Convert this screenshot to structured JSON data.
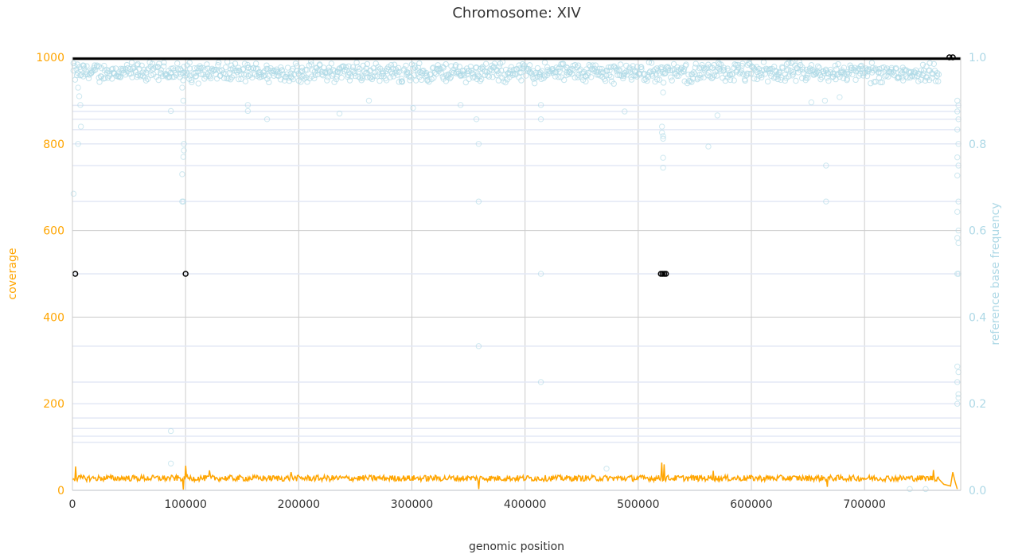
{
  "chart_data": {
    "type": "scatter",
    "title": "Chromosome: XIV",
    "xlabel": "genomic position",
    "ylabel_left": "coverage",
    "ylabel_right": "reference base frequency",
    "xlim": [
      0,
      785000
    ],
    "ylim_left": [
      0,
      1000
    ],
    "ylim_right": [
      0.0,
      1.0
    ],
    "x_ticks": [
      "0",
      "100000",
      "200000",
      "300000",
      "400000",
      "500000",
      "600000",
      "700000"
    ],
    "y_left_ticks": [
      "0",
      "200",
      "400",
      "600",
      "800",
      "1000"
    ],
    "y_right_ticks": [
      "0.0",
      "0.2",
      "0.4",
      "0.6",
      "0.8",
      "1.0"
    ],
    "grid": true,
    "colors": {
      "coverage": "#FFA500",
      "frequency": "#ADD8E6",
      "marker": "#000000",
      "grid": "#cccccc",
      "axis_left": "#FFA500",
      "axis_right": "#ADD8E6"
    },
    "coverage_series": {
      "name": "",
      "baseline": 28,
      "spikes": [
        {
          "x": 2500,
          "y": 55
        },
        {
          "x": 100000,
          "y": 57
        },
        {
          "x": 98000,
          "y": 2
        },
        {
          "x": 121000,
          "y": 46
        },
        {
          "x": 193000,
          "y": 42
        },
        {
          "x": 359000,
          "y": 3
        },
        {
          "x": 521000,
          "y": 64
        },
        {
          "x": 523000,
          "y": 60
        },
        {
          "x": 566000,
          "y": 45
        },
        {
          "x": 667000,
          "y": 8
        },
        {
          "x": 761000,
          "y": 47
        },
        {
          "x": 778000,
          "y": 42
        },
        {
          "x": 782000,
          "y": 3
        }
      ]
    },
    "frequency_series": {
      "name": "",
      "band_center": 0.965,
      "band_spread": 0.02,
      "outliers": [
        {
          "x": 5000,
          "y": 0.93
        },
        {
          "x": 6000,
          "y": 0.91
        },
        {
          "x": 7000,
          "y": 0.89
        },
        {
          "x": 7500,
          "y": 0.84
        },
        {
          "x": 5000,
          "y": 0.8
        },
        {
          "x": 1000,
          "y": 0.685
        },
        {
          "x": 87000,
          "y": 0.876
        },
        {
          "x": 87000,
          "y": 0.137
        },
        {
          "x": 87000,
          "y": 0.062
        },
        {
          "x": 97000,
          "y": 0.93
        },
        {
          "x": 98000,
          "y": 0.9
        },
        {
          "x": 98500,
          "y": 0.8
        },
        {
          "x": 98500,
          "y": 0.785
        },
        {
          "x": 98000,
          "y": 0.77
        },
        {
          "x": 97000,
          "y": 0.73
        },
        {
          "x": 97000,
          "y": 0.667
        },
        {
          "x": 98000,
          "y": 0.667
        },
        {
          "x": 155000,
          "y": 0.89
        },
        {
          "x": 155000,
          "y": 0.876
        },
        {
          "x": 172000,
          "y": 0.857
        },
        {
          "x": 236000,
          "y": 0.87
        },
        {
          "x": 262000,
          "y": 0.9
        },
        {
          "x": 301000,
          "y": 0.883
        },
        {
          "x": 343000,
          "y": 0.89
        },
        {
          "x": 357000,
          "y": 0.857
        },
        {
          "x": 359000,
          "y": 0.8
        },
        {
          "x": 359000,
          "y": 0.667
        },
        {
          "x": 359000,
          "y": 0.333
        },
        {
          "x": 414000,
          "y": 0.89
        },
        {
          "x": 414000,
          "y": 0.857
        },
        {
          "x": 414000,
          "y": 0.5
        },
        {
          "x": 414000,
          "y": 0.25
        },
        {
          "x": 472000,
          "y": 0.05
        },
        {
          "x": 488000,
          "y": 0.875
        },
        {
          "x": 521000,
          "y": 0.84
        },
        {
          "x": 521000,
          "y": 0.826
        },
        {
          "x": 522000,
          "y": 0.818
        },
        {
          "x": 522000,
          "y": 0.812
        },
        {
          "x": 522000,
          "y": 0.768
        },
        {
          "x": 522000,
          "y": 0.745
        },
        {
          "x": 522000,
          "y": 0.919
        },
        {
          "x": 562000,
          "y": 0.794
        },
        {
          "x": 570000,
          "y": 0.866
        },
        {
          "x": 653000,
          "y": 0.896
        },
        {
          "x": 665000,
          "y": 0.9
        },
        {
          "x": 666000,
          "y": 0.75
        },
        {
          "x": 666000,
          "y": 0.667
        },
        {
          "x": 678000,
          "y": 0.908
        },
        {
          "x": 740000,
          "y": 0.003
        },
        {
          "x": 754000,
          "y": 0.003
        },
        {
          "x": 782000,
          "y": 0.9
        },
        {
          "x": 783000,
          "y": 0.889
        },
        {
          "x": 782000,
          "y": 0.875
        },
        {
          "x": 783000,
          "y": 0.857
        },
        {
          "x": 782000,
          "y": 0.833
        },
        {
          "x": 783000,
          "y": 0.8
        },
        {
          "x": 782000,
          "y": 0.769
        },
        {
          "x": 783000,
          "y": 0.75
        },
        {
          "x": 782000,
          "y": 0.727
        },
        {
          "x": 783000,
          "y": 0.667
        },
        {
          "x": 782000,
          "y": 0.643
        },
        {
          "x": 783000,
          "y": 0.6
        },
        {
          "x": 782000,
          "y": 0.583
        },
        {
          "x": 783000,
          "y": 0.571
        },
        {
          "x": 782000,
          "y": 0.5
        },
        {
          "x": 783000,
          "y": 0.5
        },
        {
          "x": 782000,
          "y": 0.286
        },
        {
          "x": 783000,
          "y": 0.273
        },
        {
          "x": 782000,
          "y": 0.25
        },
        {
          "x": 783000,
          "y": 0.222
        },
        {
          "x": 782000,
          "y": 0.2
        },
        {
          "x": 783000,
          "y": 0.214
        }
      ]
    },
    "reference_lines": [
      0.889,
      0.875,
      0.857,
      0.833,
      0.8,
      0.75,
      0.667,
      0.5,
      0.333,
      0.25,
      0.2,
      0.167,
      0.143,
      0.125,
      0.111,
      0.0
    ],
    "markers": [
      {
        "x": 2500,
        "y": 500
      },
      {
        "x": 100000,
        "y": 500
      },
      {
        "x": 520000,
        "y": 500
      },
      {
        "x": 521500,
        "y": 500
      },
      {
        "x": 523000,
        "y": 500
      },
      {
        "x": 524500,
        "y": 500
      },
      {
        "x": 775000,
        "y": 1000
      },
      {
        "x": 778000,
        "y": 1000
      }
    ],
    "top_line": {
      "y": 995,
      "x_start": 0,
      "x_end": 785000
    }
  }
}
